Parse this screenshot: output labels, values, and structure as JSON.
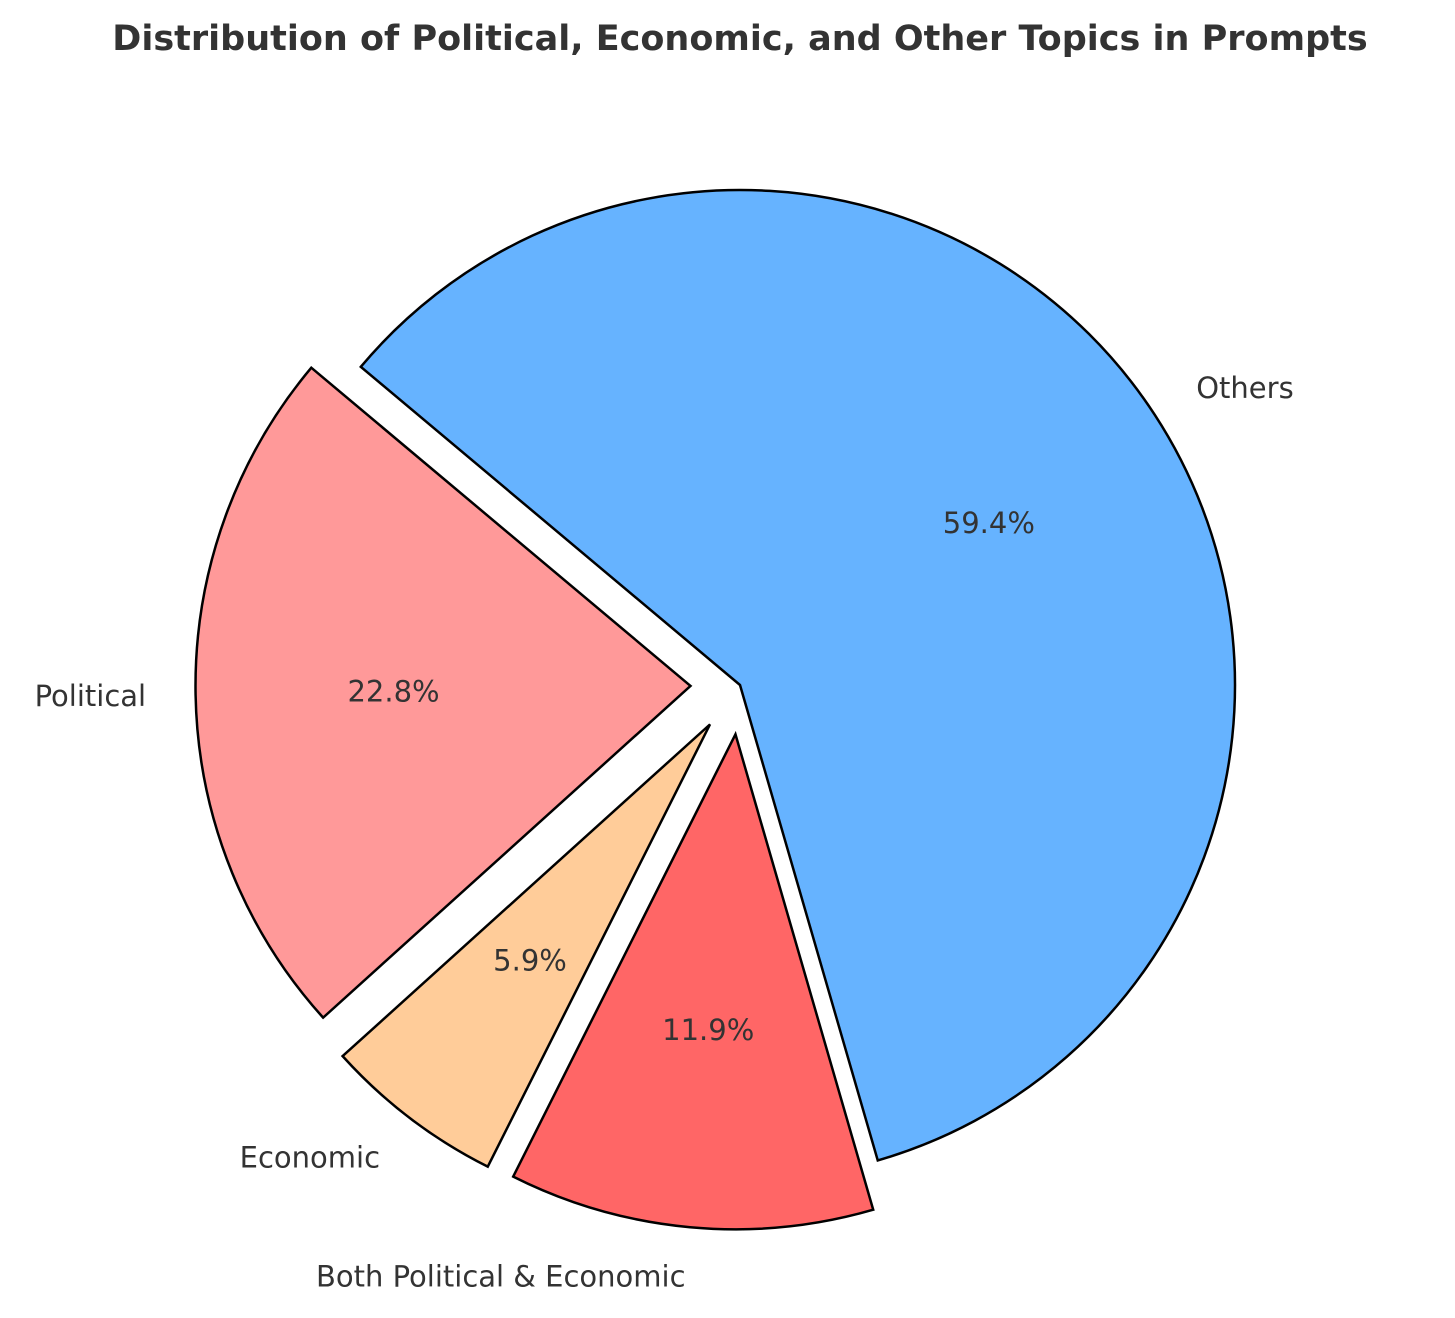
{
  "chart_data": {
    "type": "pie",
    "title": "Distribution of Political, Economic, and Other Topics in Prompts",
    "slices": [
      {
        "name": "Political",
        "value": 22.8,
        "pct_label": "22.8%",
        "color": "#ff9999",
        "explode": 0.1
      },
      {
        "name": "Economic",
        "value": 5.9,
        "pct_label": "5.9%",
        "color": "#ffcc99",
        "explode": 0.1
      },
      {
        "name": "Both Political & Economic",
        "value": 11.9,
        "pct_label": "11.9%",
        "color": "#ff6666",
        "explode": 0.1
      },
      {
        "name": "Others",
        "value": 59.4,
        "pct_label": "59.4%",
        "color": "#66b3ff",
        "explode": 0
      }
    ],
    "start_angle_deg": 140,
    "direction": "counterclockwise",
    "edge_color": "#000000",
    "legend": "none"
  }
}
